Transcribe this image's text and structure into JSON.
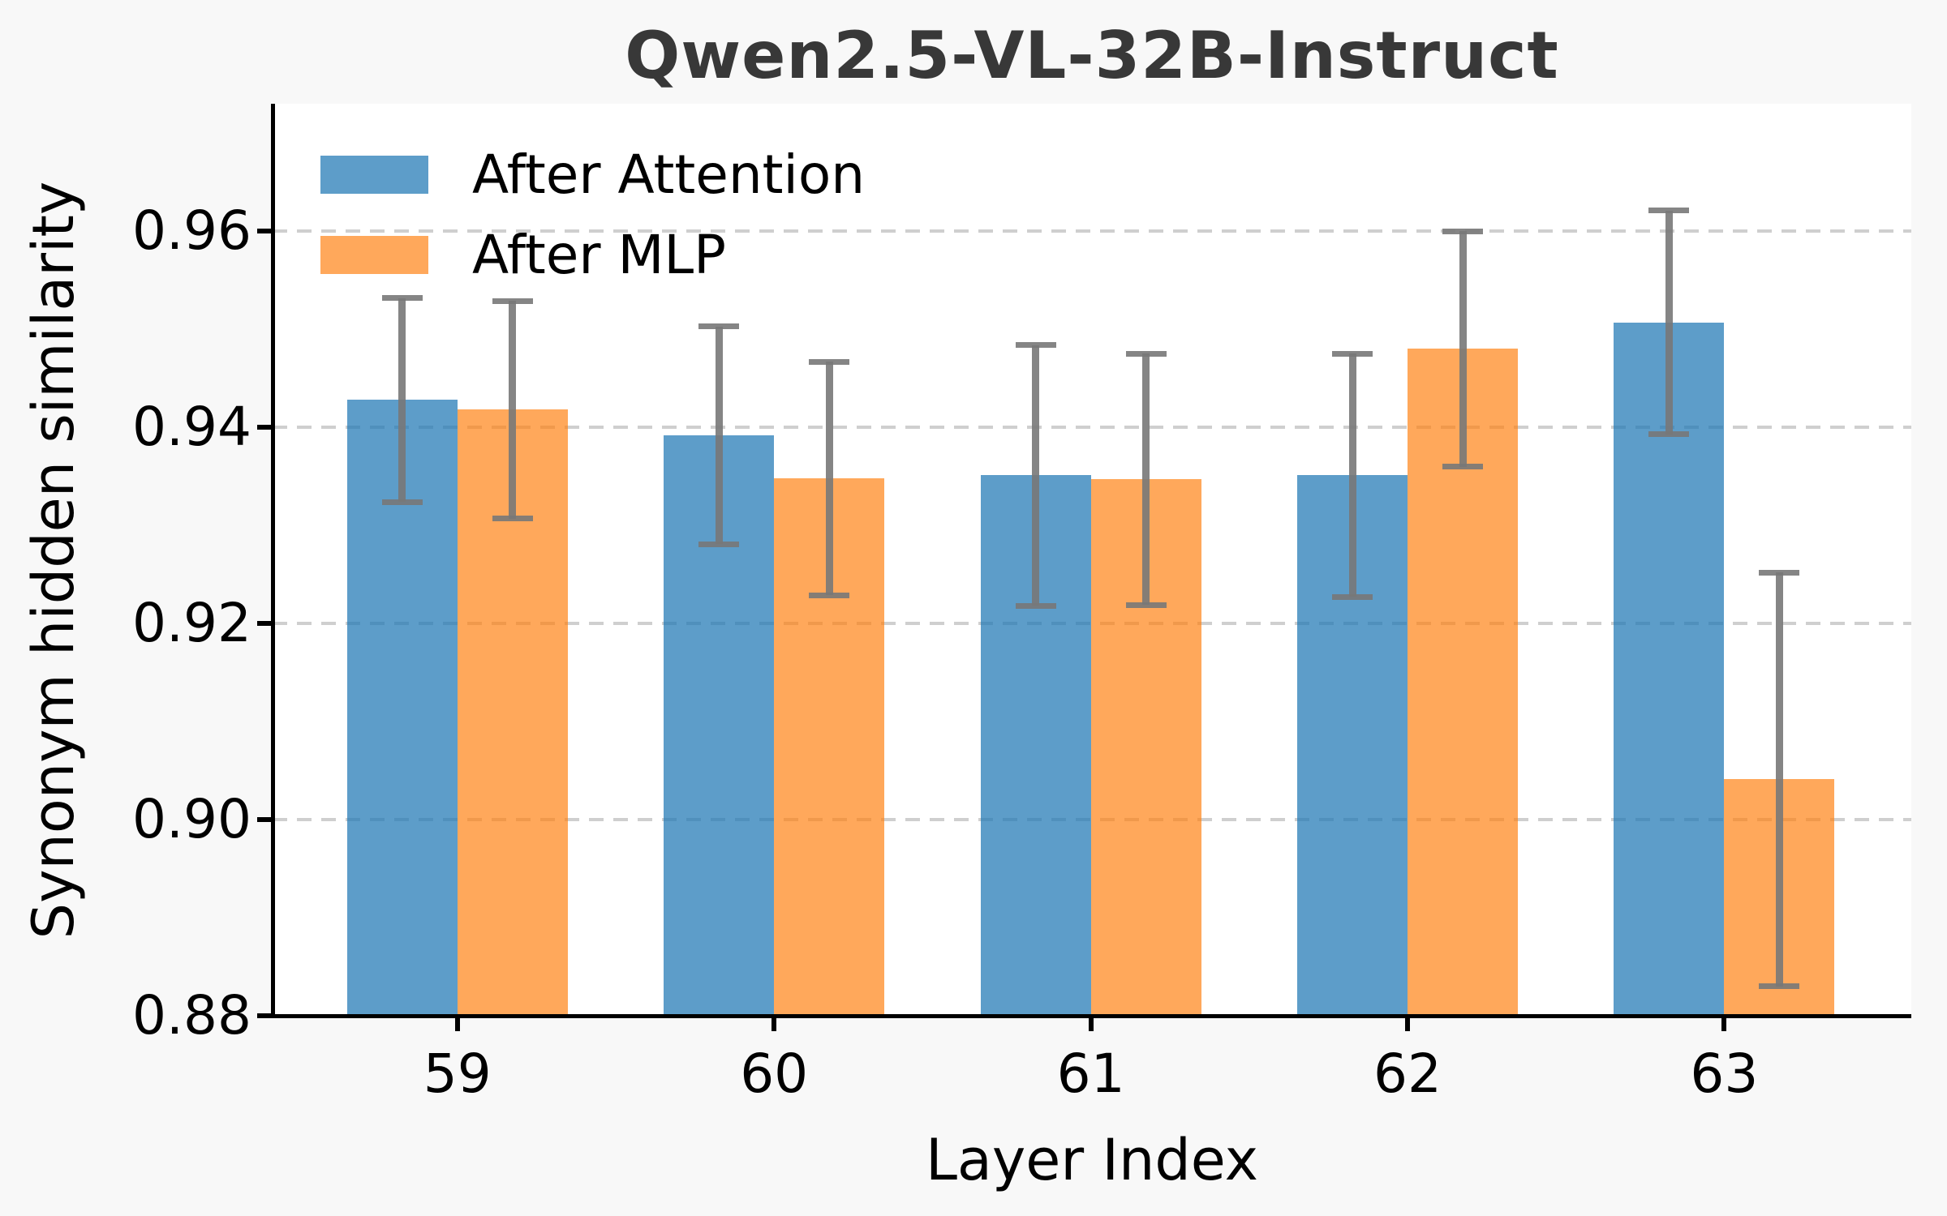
{
  "chart_data": {
    "type": "bar",
    "title": "Qwen2.5-VL-32B-Instruct",
    "xlabel": "Layer Index",
    "ylabel": "Synonym hidden similarity",
    "categories": [
      "59",
      "60",
      "61",
      "62",
      "63"
    ],
    "series": [
      {
        "name": "After Attention",
        "color": "rgba(31,119,180,0.72)",
        "base_color": "#1f77b4",
        "values": [
          0.9428,
          0.9392,
          0.9351,
          0.9351,
          0.9507
        ],
        "errors": [
          0.0104,
          0.0111,
          0.0133,
          0.0124,
          0.0114
        ]
      },
      {
        "name": "After MLP",
        "color": "rgba(255,127,14,0.68)",
        "base_color": "#ff7f0e",
        "values": [
          0.9418,
          0.9348,
          0.9347,
          0.948,
          0.9041
        ],
        "errors": [
          0.0111,
          0.0119,
          0.0128,
          0.012,
          0.0211
        ]
      }
    ],
    "ylim": [
      0.88,
      0.973
    ],
    "yticks": [
      {
        "value": 0.88,
        "label": "0.88"
      },
      {
        "value": 0.9,
        "label": "0.90"
      },
      {
        "value": 0.92,
        "label": "0.92"
      },
      {
        "value": 0.94,
        "label": "0.94"
      },
      {
        "value": 0.96,
        "label": "0.96"
      }
    ],
    "grid": {
      "horizontal": true,
      "style": "dashed",
      "at_baseline": false
    },
    "legend_position": "upper left",
    "error_bars": {
      "style": "caps",
      "color": "rgba(120,120,120,0.9)"
    },
    "colors": {
      "figure_bg": "#f8f8f8",
      "plot_bg": "#ffffff",
      "grid": "#cfcfcf",
      "spine": "#000000",
      "title_text": "#383838",
      "axis_text": "#000000"
    }
  }
}
